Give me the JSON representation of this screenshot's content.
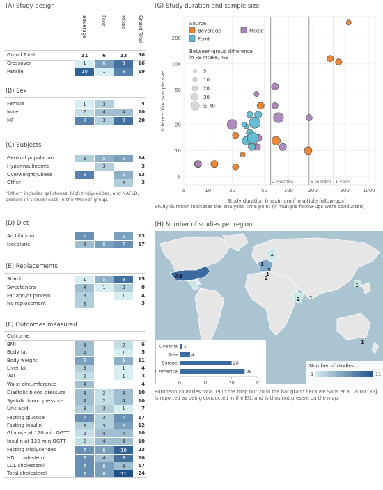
{
  "left": {
    "col_headers": [
      "Beverage",
      "Food",
      "Mixed",
      "Grand Total"
    ],
    "sections": [
      {
        "key": "A",
        "title": "(A) Study design",
        "header_row": true,
        "rows": [
          {
            "label": "Grand Total",
            "values": [
              11,
              6,
              13
            ],
            "total": 30,
            "bold": true
          },
          {
            "label": "Crossover",
            "values": [
              1,
              6,
              9
            ],
            "total": 16
          },
          {
            "label": "Parallel",
            "values": [
              10,
              1,
              8
            ],
            "total": 19
          }
        ]
      },
      {
        "key": "B",
        "title": "(B) Sex",
        "rows": [
          {
            "label": "Female",
            "values": [
              1,
              3,
              null
            ],
            "total": 4
          },
          {
            "label": "Male",
            "values": [
              2,
              4,
              4
            ],
            "total": 10
          },
          {
            "label": "MF",
            "values": [
              8,
              3,
              9
            ],
            "total": 20
          }
        ]
      },
      {
        "key": "C",
        "title": "(C) Subjects",
        "rows": [
          {
            "label": "General population",
            "values": [
              3,
              5,
              6
            ],
            "total": 14
          },
          {
            "label": "Hyperinsulinemic",
            "values": [
              null,
              3,
              null
            ],
            "total": 3
          },
          {
            "label": "Overweight/Obese",
            "values": [
              8,
              null,
              5
            ],
            "total": 13
          },
          {
            "label": "Other",
            "values": [
              null,
              null,
              3
            ],
            "total": 3
          }
        ],
        "note": "\"Other\" includes gallstones, high triglycerides, and NAFLD, present in 1 study each in the \"Mixed\" group."
      },
      {
        "key": "D",
        "title": "(D) Diet",
        "rows": [
          {
            "label": "Ad Libidum",
            "values": [
              7,
              null,
              6
            ],
            "total": 13
          },
          {
            "label": "Isocaloric",
            "values": [
              4,
              6,
              7
            ],
            "total": 17
          }
        ]
      },
      {
        "key": "E",
        "title": "(E) Replacements",
        "rows": [
          {
            "label": "Starch",
            "values": [
              1,
              5,
              9
            ],
            "total": 15
          },
          {
            "label": "Sweeteners",
            "values": [
              4,
              1,
              3
            ],
            "total": 8
          },
          {
            "label": "Fat and/or protein",
            "values": [
              3,
              null,
              1
            ],
            "total": 4
          },
          {
            "label": "No replacement",
            "values": [
              3,
              null,
              null
            ],
            "total": 3
          }
        ]
      },
      {
        "key": "F",
        "title": "(F) Outcomes measured",
        "subheader": "Outcome",
        "groups": [
          [
            {
              "label": "BMI",
              "values": [
                4,
                null,
                2
              ],
              "total": 6
            },
            {
              "label": "Body fat",
              "values": [
                4,
                null,
                1
              ],
              "total": 5
            },
            {
              "label": "Body weight",
              "values": [
                6,
                null,
                5
              ],
              "total": 11
            },
            {
              "label": "Liver fat",
              "values": [
                3,
                null,
                1
              ],
              "total": 4
            },
            {
              "label": "VAT",
              "values": [
                2,
                null,
                1
              ],
              "total": 3
            },
            {
              "label": "Waist circumference",
              "values": [
                4,
                null,
                null
              ],
              "total": 4
            }
          ],
          [
            {
              "label": "Diastolic blood pressure",
              "values": [
                4,
                2,
                4
              ],
              "total": 10
            },
            {
              "label": "Systolic blood pressure",
              "values": [
                4,
                2,
                4
              ],
              "total": 10
            },
            {
              "label": "Uric acid",
              "values": [
                3,
                3,
                1
              ],
              "total": 7
            }
          ],
          [
            {
              "label": "Fasting glucose",
              "values": [
                7,
                3,
                7
              ],
              "total": 17
            },
            {
              "label": "Fasting insulin",
              "values": [
                3,
                3,
                6
              ],
              "total": 12
            },
            {
              "label": "Glucose at 120 min OGTT",
              "values": [
                2,
                4,
                4
              ],
              "total": 10
            },
            {
              "label": "Insulin at 120 min OGTT",
              "values": [
                2,
                4,
                4
              ],
              "total": 10
            }
          ],
          [
            {
              "label": "Fasting triglycerides",
              "values": [
                7,
                6,
                10
              ],
              "total": 23
            },
            {
              "label": "HDL cholesterol",
              "values": [
                7,
                4,
                9
              ],
              "total": 20
            },
            {
              "label": "LDL cholesterol",
              "values": [
                7,
                6,
                4
              ],
              "total": 17
            },
            {
              "label": "Total cholesterol",
              "values": [
                7,
                6,
                11
              ],
              "total": 24
            }
          ]
        ]
      }
    ]
  },
  "panel_g": {
    "title": "(G) Study duration and sample size",
    "legend_source_title": "Source",
    "legend_source": [
      {
        "name": "Beverage",
        "color": "#E9832E"
      },
      {
        "name": "Mixed",
        "color": "#A983B8"
      },
      {
        "name": "Food",
        "color": "#5FBCD3"
      }
    ],
    "legend_size_title": "Between-group difference\nin FS intake, %E",
    "legend_sizes": [
      "5",
      "10",
      "20",
      "30",
      "≥ 40"
    ],
    "footnote": "Study duration indicates the analyzed time point (if multiple follow-ups were conducted)"
  },
  "chart_data": {
    "type": "scatter",
    "title": "(G) Study duration and sample size",
    "xlabel": "Study duration (maximum if multiple follow-ups)",
    "ylabel": "Intervention sample size",
    "x_scale": "log",
    "y_scale": "log",
    "xlim": [
      5,
      1200
    ],
    "ylim": [
      4,
      350
    ],
    "x_ticks": [
      5,
      10,
      20,
      50,
      100,
      200,
      500,
      1000
    ],
    "y_ticks": [
      5,
      10,
      20,
      50,
      100,
      200
    ],
    "reference_lines": [
      {
        "x": 60,
        "label": "2 months"
      },
      {
        "x": 180,
        "label": "6 months"
      },
      {
        "x": 365,
        "label": "1 year"
      }
    ],
    "series": [
      {
        "name": "Beverage",
        "color": "#E9832E",
        "points": [
          {
            "x": 560,
            "y": 300,
            "fs": 5
          },
          {
            "x": 330,
            "y": 115,
            "fs": 8
          },
          {
            "x": 420,
            "y": 105,
            "fs": 8
          },
          {
            "x": 22,
            "y": 15,
            "fs": 8
          },
          {
            "x": 27,
            "y": 9,
            "fs": 5
          },
          {
            "x": 22,
            "y": 6.5,
            "fs": 8
          },
          {
            "x": 45,
            "y": 33,
            "fs": 10
          },
          {
            "x": 70,
            "y": 13,
            "fs": 15
          },
          {
            "x": 175,
            "y": 10,
            "fs": 12
          },
          {
            "x": 7.5,
            "y": 7,
            "fs": 10
          },
          {
            "x": 12,
            "y": 7,
            "fs": 10
          }
        ]
      },
      {
        "name": "Mixed",
        "color": "#A983B8",
        "points": [
          {
            "x": 180,
            "y": 24,
            "fs": 8
          },
          {
            "x": 40,
            "y": 45,
            "fs": 5
          },
          {
            "x": 68,
            "y": 55,
            "fs": 10
          },
          {
            "x": 68,
            "y": 33,
            "fs": 8
          },
          {
            "x": 75,
            "y": 24,
            "fs": 20
          },
          {
            "x": 20,
            "y": 20,
            "fs": 20
          },
          {
            "x": 7.5,
            "y": 7,
            "fs": 8
          },
          {
            "x": 36,
            "y": 12,
            "fs": 10
          },
          {
            "x": 41,
            "y": 11,
            "fs": 8
          },
          {
            "x": 85,
            "y": 11,
            "fs": 10
          },
          {
            "x": 42,
            "y": 14,
            "fs": 10
          }
        ]
      },
      {
        "name": "Food",
        "color": "#5FBCD3",
        "points": [
          {
            "x": 33,
            "y": 26,
            "fs": 8
          },
          {
            "x": 42,
            "y": 26,
            "fs": 10
          },
          {
            "x": 38,
            "y": 21,
            "fs": 25
          },
          {
            "x": 30,
            "y": 19,
            "fs": 5
          },
          {
            "x": 28,
            "y": 20,
            "fs": 5
          },
          {
            "x": 33,
            "y": 16,
            "fs": 10
          },
          {
            "x": 30,
            "y": 13,
            "fs": 15
          },
          {
            "x": 36,
            "y": 14,
            "fs": 25
          },
          {
            "x": 35,
            "y": 11,
            "fs": 10
          }
        ]
      }
    ]
  },
  "panel_h": {
    "title": "(H) Number of studies per region",
    "map_counts": [
      "24",
      "1",
      "2",
      "3",
      "1",
      "2",
      "1",
      "1",
      "1",
      "1"
    ],
    "bar_chart": {
      "categories": [
        "Oceania",
        "Asia",
        "Europe",
        "N. America"
      ],
      "values": [
        1,
        4,
        20,
        25
      ],
      "xlim": [
        0,
        30
      ],
      "x_ticks": [
        "0",
        "10",
        "20",
        "30"
      ]
    },
    "legend_title": "Number of studies",
    "legend_min": "1",
    "legend_max": "11",
    "footnote": "European countries total 19 in the map but 20 in the bar graph because Saris et al. 2000 [36] is reported as being conducted in the EU, and is thus not present on the map."
  }
}
